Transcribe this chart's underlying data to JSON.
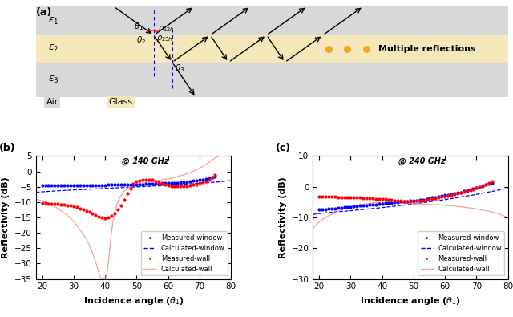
{
  "fig_width": 6.4,
  "fig_height": 3.95,
  "dpi": 100,
  "panel_b": {
    "xlim": [
      18,
      80
    ],
    "ylim": [
      -35,
      5
    ],
    "xticks": [
      20,
      30,
      40,
      50,
      60,
      70,
      80
    ],
    "yticks": [
      -35,
      -30,
      -25,
      -20,
      -15,
      -10,
      -5,
      0,
      5
    ],
    "xlabel": "Incidence angle ($\\theta_1$)",
    "ylabel": "Reflectivity (dB)",
    "freq_label": "@ 140 GHz",
    "blue_dot_x": [
      20,
      21,
      22,
      23,
      24,
      25,
      26,
      27,
      28,
      29,
      30,
      31,
      32,
      33,
      34,
      35,
      36,
      37,
      38,
      39,
      40,
      41,
      42,
      43,
      44,
      45,
      46,
      47,
      48,
      49,
      50,
      51,
      52,
      53,
      54,
      55,
      56,
      57,
      58,
      59,
      60,
      61,
      62,
      63,
      64,
      65,
      66,
      67,
      68,
      69,
      70,
      71,
      72,
      73,
      74,
      75
    ],
    "blue_dot_y": [
      -4.5,
      -4.5,
      -4.5,
      -4.5,
      -4.5,
      -4.5,
      -4.5,
      -4.5,
      -4.6,
      -4.6,
      -4.6,
      -4.6,
      -4.6,
      -4.6,
      -4.6,
      -4.6,
      -4.5,
      -4.5,
      -4.5,
      -4.5,
      -4.5,
      -4.4,
      -4.4,
      -4.4,
      -4.4,
      -4.4,
      -4.3,
      -4.3,
      -4.3,
      -4.3,
      -4.2,
      -4.2,
      -4.2,
      -4.1,
      -4.1,
      -4.1,
      -4.0,
      -4.0,
      -4.0,
      -3.9,
      -3.9,
      -3.8,
      -3.8,
      -3.7,
      -3.6,
      -3.5,
      -3.4,
      -3.3,
      -3.1,
      -2.9,
      -2.8,
      -2.6,
      -2.4,
      -2.2,
      -2.0,
      -1.8
    ],
    "blue_line_x": [
      18,
      25,
      35,
      45,
      55,
      65,
      75,
      80
    ],
    "blue_line_y": [
      -6.8,
      -6.3,
      -5.8,
      -5.3,
      -4.8,
      -4.2,
      -3.5,
      -3.0
    ],
    "red_dot_x": [
      20,
      21,
      22,
      23,
      24,
      25,
      26,
      27,
      28,
      29,
      30,
      31,
      32,
      33,
      34,
      35,
      36,
      37,
      38,
      39,
      40,
      41,
      42,
      43,
      44,
      45,
      46,
      47,
      48,
      49,
      50,
      51,
      52,
      53,
      54,
      55,
      56,
      57,
      58,
      59,
      60,
      61,
      62,
      63,
      64,
      65,
      66,
      67,
      68,
      69,
      70,
      71,
      72,
      73,
      74,
      75
    ],
    "red_dot_y": [
      -10.3,
      -10.4,
      -10.5,
      -10.5,
      -10.5,
      -10.6,
      -10.7,
      -10.8,
      -11.0,
      -11.2,
      -11.4,
      -11.7,
      -12.0,
      -12.4,
      -12.8,
      -13.3,
      -13.8,
      -14.3,
      -14.7,
      -15.0,
      -15.2,
      -15.0,
      -14.5,
      -13.7,
      -12.5,
      -11.0,
      -9.2,
      -7.2,
      -5.5,
      -4.0,
      -3.2,
      -2.9,
      -2.7,
      -2.6,
      -2.6,
      -2.8,
      -3.2,
      -3.6,
      -3.9,
      -4.2,
      -4.5,
      -4.7,
      -4.8,
      -4.8,
      -4.8,
      -4.8,
      -4.7,
      -4.6,
      -4.4,
      -4.2,
      -3.9,
      -3.6,
      -3.2,
      -2.7,
      -2.0,
      -1.2
    ],
    "pink_line_x": [
      18,
      19,
      20,
      21,
      22,
      23,
      24,
      25,
      26,
      27,
      28,
      29,
      30,
      31,
      32,
      33,
      34,
      35,
      36,
      37,
      38,
      38.5,
      39,
      39.5,
      40,
      40.2,
      40.5,
      40.8,
      41,
      41.3,
      41.6,
      42,
      42.5,
      43,
      44,
      45,
      46,
      47,
      48,
      49,
      50,
      51,
      52,
      53,
      54,
      55,
      56,
      57,
      58,
      59,
      60,
      61,
      62,
      63,
      64,
      65,
      66,
      67,
      68,
      69,
      70,
      71,
      72,
      73,
      74,
      75,
      76,
      77,
      78,
      79,
      80
    ],
    "pink_line_y": [
      -9.0,
      -9.3,
      -9.6,
      -10.0,
      -10.5,
      -11.0,
      -11.5,
      -12.1,
      -12.8,
      -13.5,
      -14.3,
      -15.2,
      -16.3,
      -17.5,
      -18.9,
      -20.4,
      -22.0,
      -24.0,
      -26.5,
      -29.5,
      -33.0,
      -34.5,
      -34.9,
      -35.0,
      -34.9,
      -34.5,
      -33.5,
      -32.0,
      -30.0,
      -27.0,
      -24.0,
      -20.0,
      -16.5,
      -13.5,
      -10.0,
      -8.0,
      -6.5,
      -5.5,
      -5.0,
      -4.6,
      -4.3,
      -4.0,
      -3.8,
      -3.6,
      -3.4,
      -3.2,
      -3.1,
      -2.9,
      -2.8,
      -2.6,
      -2.4,
      -2.2,
      -2.0,
      -1.7,
      -1.4,
      -1.1,
      -0.8,
      -0.4,
      0.0,
      0.5,
      1.0,
      1.6,
      2.2,
      2.9,
      3.6,
      4.4,
      5.0,
      5.0,
      5.0,
      5.0,
      5.0
    ]
  },
  "panel_c": {
    "xlim": [
      18,
      80
    ],
    "ylim": [
      -30,
      10
    ],
    "xticks": [
      20,
      30,
      40,
      50,
      60,
      70,
      80
    ],
    "yticks": [
      -30,
      -20,
      -10,
      0,
      10
    ],
    "xlabel": "Incidence angle ($\\theta_1$)",
    "ylabel": "Reflectivity (dB)",
    "freq_label": "@ 240 GHz",
    "blue_dot_x": [
      20,
      21,
      22,
      23,
      24,
      25,
      26,
      27,
      28,
      29,
      30,
      31,
      32,
      33,
      34,
      35,
      36,
      37,
      38,
      39,
      40,
      41,
      42,
      43,
      44,
      45,
      46,
      47,
      48,
      49,
      50,
      51,
      52,
      53,
      54,
      55,
      56,
      57,
      58,
      59,
      60,
      61,
      62,
      63,
      64,
      65,
      66,
      67,
      68,
      69,
      70,
      71,
      72,
      73,
      74,
      75
    ],
    "blue_dot_y": [
      -7.5,
      -7.4,
      -7.3,
      -7.2,
      -7.1,
      -7.0,
      -6.9,
      -6.8,
      -6.7,
      -6.6,
      -6.5,
      -6.4,
      -6.3,
      -6.2,
      -6.1,
      -6.0,
      -5.9,
      -5.8,
      -5.7,
      -5.6,
      -5.5,
      -5.4,
      -5.3,
      -5.2,
      -5.1,
      -5.0,
      -4.9,
      -4.8,
      -4.7,
      -4.6,
      -4.5,
      -4.4,
      -4.3,
      -4.2,
      -4.0,
      -3.8,
      -3.6,
      -3.4,
      -3.2,
      -3.0,
      -2.8,
      -2.6,
      -2.4,
      -2.2,
      -2.0,
      -1.8,
      -1.5,
      -1.2,
      -0.9,
      -0.6,
      -0.3,
      0.0,
      0.3,
      0.6,
      0.9,
      1.2
    ],
    "blue_line_x": [
      18,
      22,
      30,
      40,
      50,
      60,
      70,
      76,
      80
    ],
    "blue_line_y": [
      -9.0,
      -8.5,
      -7.8,
      -6.8,
      -5.6,
      -4.2,
      -2.5,
      -1.3,
      -0.5
    ],
    "red_dot_x": [
      20,
      21,
      22,
      23,
      24,
      25,
      26,
      27,
      28,
      29,
      30,
      31,
      32,
      33,
      34,
      35,
      36,
      37,
      38,
      39,
      40,
      41,
      42,
      43,
      44,
      45,
      46,
      47,
      48,
      49,
      50,
      51,
      52,
      53,
      54,
      55,
      56,
      57,
      58,
      59,
      60,
      61,
      62,
      63,
      64,
      65,
      66,
      67,
      68,
      69,
      70,
      71,
      72,
      73,
      74,
      75
    ],
    "red_dot_y": [
      -3.2,
      -3.2,
      -3.3,
      -3.3,
      -3.3,
      -3.3,
      -3.4,
      -3.4,
      -3.4,
      -3.5,
      -3.5,
      -3.5,
      -3.6,
      -3.6,
      -3.7,
      -3.7,
      -3.8,
      -3.8,
      -3.9,
      -3.9,
      -4.0,
      -4.1,
      -4.2,
      -4.3,
      -4.4,
      -4.5,
      -4.6,
      -4.7,
      -4.7,
      -4.7,
      -4.7,
      -4.6,
      -4.5,
      -4.4,
      -4.3,
      -4.1,
      -3.9,
      -3.7,
      -3.5,
      -3.3,
      -3.1,
      -2.9,
      -2.7,
      -2.5,
      -2.2,
      -2.0,
      -1.7,
      -1.4,
      -1.1,
      -0.8,
      -0.4,
      0.0,
      0.4,
      0.8,
      1.2,
      1.7
    ],
    "pink_line_x": [
      18,
      19,
      20,
      22,
      25,
      28,
      30,
      35,
      40,
      45,
      50,
      55,
      60,
      65,
      70,
      75,
      77,
      80
    ],
    "pink_line_y": [
      -13.5,
      -12.5,
      -11.5,
      -10.0,
      -8.5,
      -7.2,
      -6.5,
      -5.5,
      -5.0,
      -5.2,
      -5.5,
      -5.8,
      -6.0,
      -6.5,
      -7.2,
      -8.2,
      -8.8,
      -10.0
    ]
  }
}
